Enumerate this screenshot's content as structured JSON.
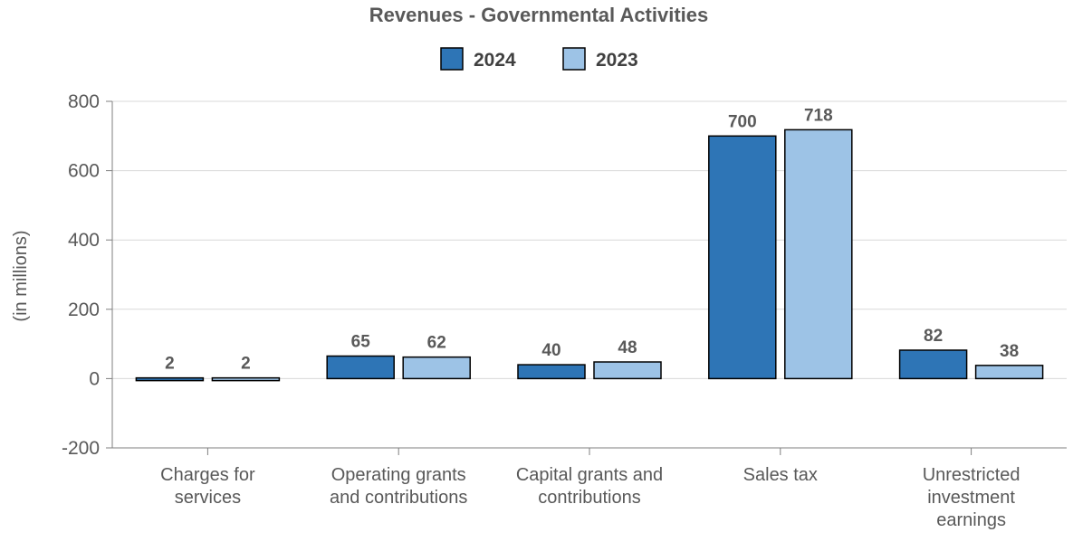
{
  "chart_data": {
    "type": "bar",
    "title": "Revenues - Governmental Activities",
    "ylabel": "(in millions)",
    "xlabel": "",
    "categories": [
      [
        "Charges for",
        "services"
      ],
      [
        "Operating grants",
        "and contributions"
      ],
      [
        "Capital grants and",
        "contributions"
      ],
      [
        "Sales tax"
      ],
      [
        "Unrestricted",
        "investment",
        "earnings"
      ]
    ],
    "series": [
      {
        "name": "2024",
        "color": "#2e75b6",
        "values": [
          2,
          65,
          40,
          700,
          82
        ]
      },
      {
        "name": "2023",
        "color": "#9dc3e6",
        "values": [
          2,
          62,
          48,
          718,
          38
        ]
      }
    ],
    "data_labels": [
      [
        "2",
        "65",
        "40",
        "700",
        "82"
      ],
      [
        "2",
        "62",
        "48",
        "718",
        "38"
      ]
    ],
    "ylim": [
      -200,
      800
    ],
    "yticks": [
      -200,
      0,
      200,
      400,
      600,
      800
    ],
    "ytick_labels": [
      "-200",
      "0",
      "200",
      "400",
      "600",
      "800"
    ],
    "grid": true,
    "legend": "top-center"
  }
}
